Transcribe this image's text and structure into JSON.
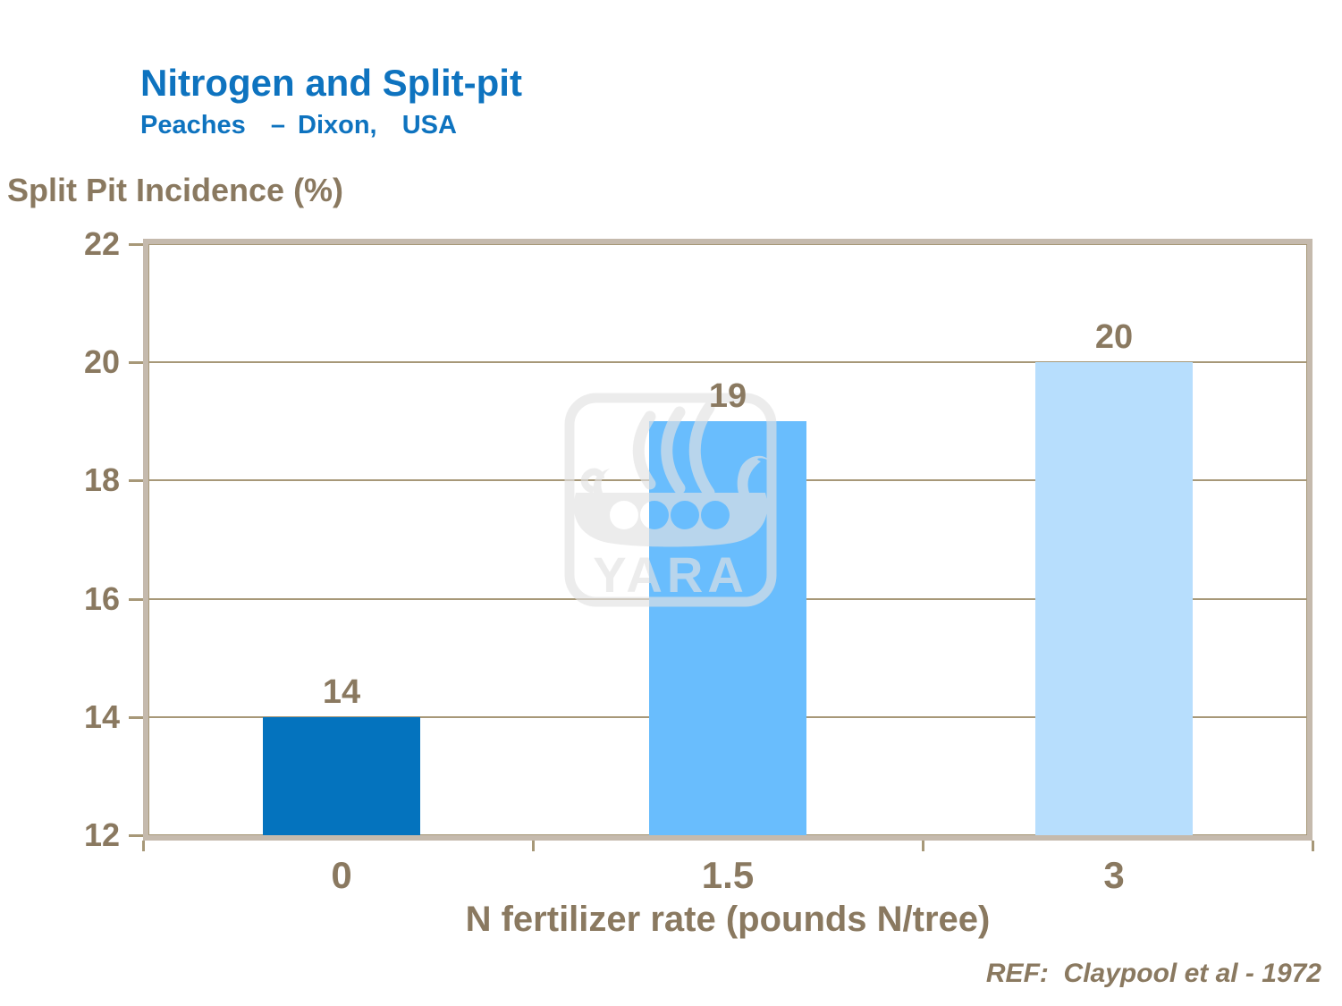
{
  "header": {
    "title": "Nitrogen and Split-pit",
    "subtitle": "Peaches  – Dixon,  USA"
  },
  "footer": {
    "reference": "REF:  Claypool et al - 1972"
  },
  "watermark": {
    "label": "YARA"
  },
  "colors": {
    "title_blue": "#0E73BF",
    "text_brown": "#8A7960",
    "grid_tan": "#A79878",
    "frame_tan": "#C5BAAD",
    "watermark_gray": "#E3E3E3",
    "bar_colors": [
      "#0473BE",
      "#69BDFD",
      "#B7DEFD"
    ]
  },
  "chart_data": {
    "type": "bar",
    "title": "Nitrogen and Split-pit",
    "subtitle": "Peaches – Dixon, USA",
    "categories": [
      "0",
      "1.5",
      "3"
    ],
    "values": [
      14,
      19,
      20
    ],
    "bar_labels": [
      "14",
      "19",
      "20"
    ],
    "xlabel": "N fertilizer rate (pounds N/tree)",
    "ylabel": "Split Pit Incidence (%)",
    "ylim": [
      12,
      22
    ],
    "yticks": [
      12,
      14,
      16,
      18,
      20,
      22
    ],
    "grid": "horizontal-only",
    "legend": "none",
    "annotation": "REF:  Claypool et al - 1972"
  }
}
